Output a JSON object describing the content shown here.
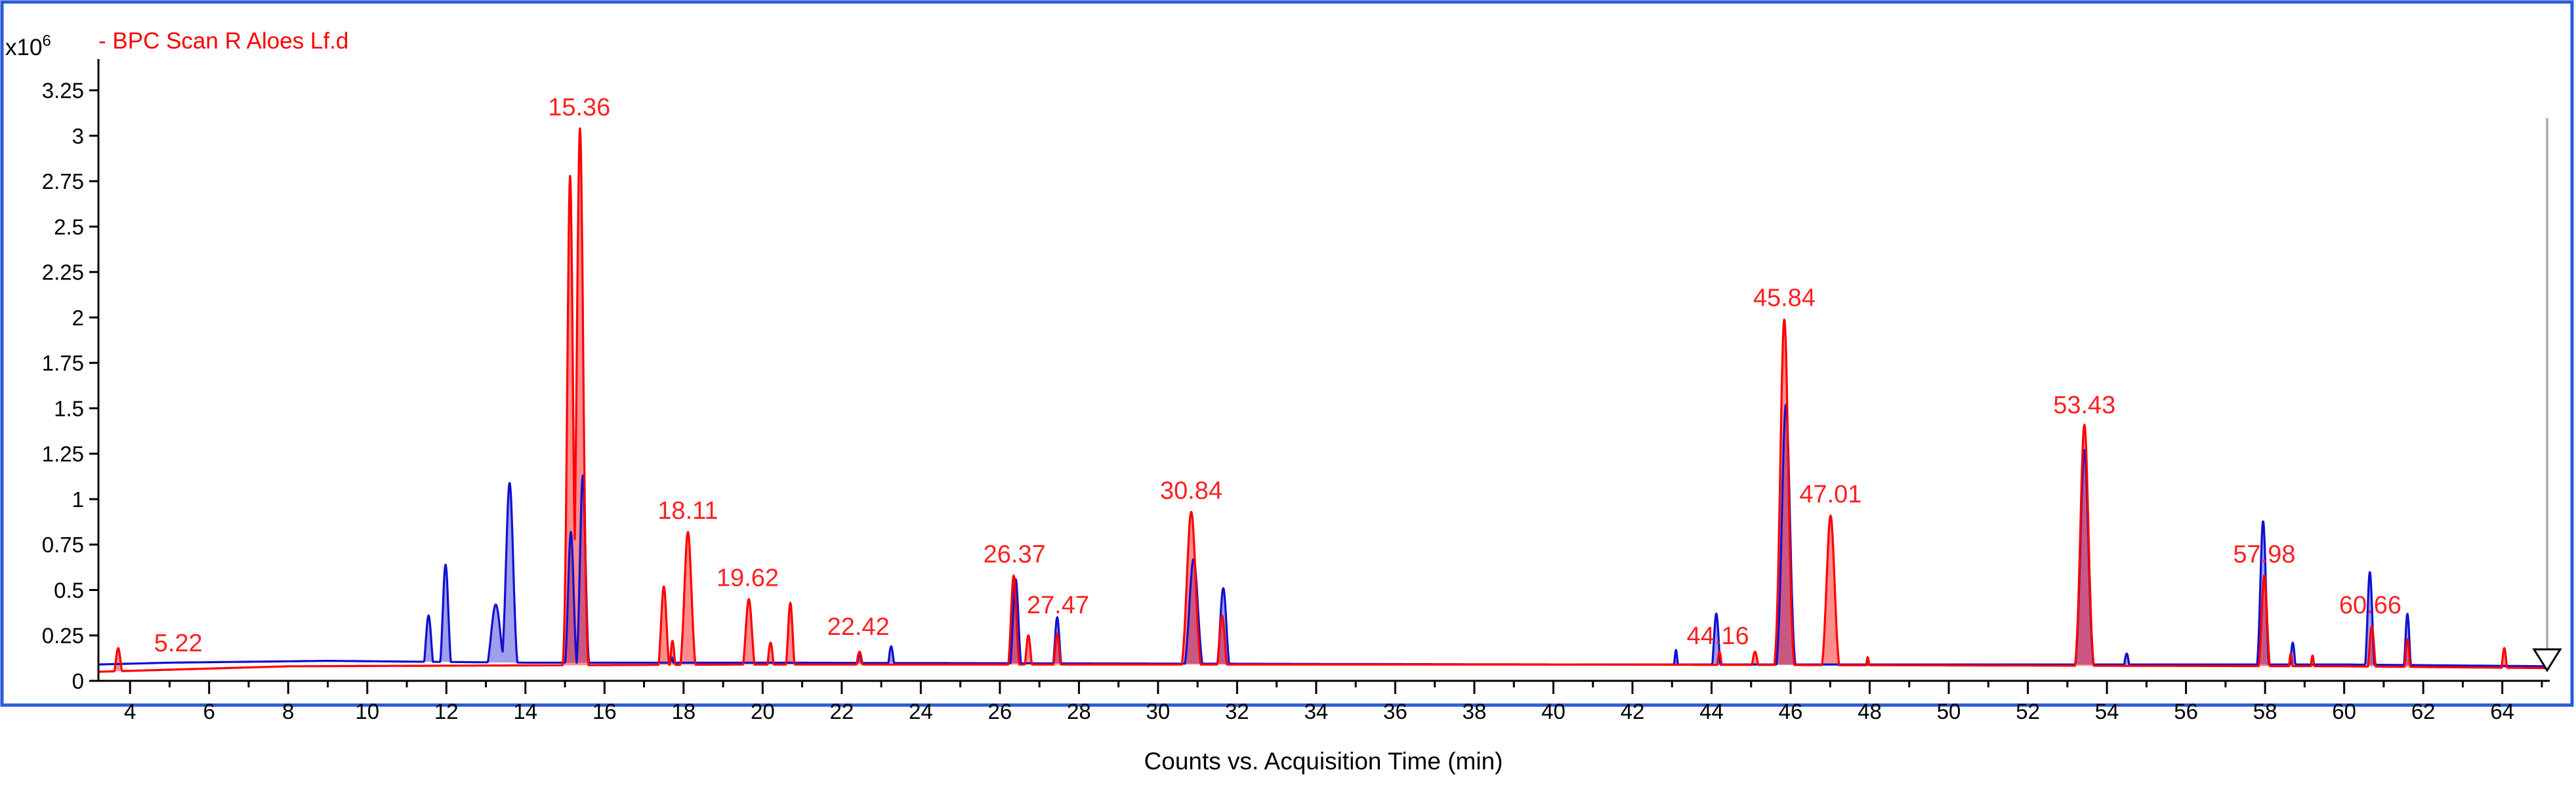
{
  "multiplier": {
    "base": "x10",
    "exp": "6"
  },
  "legend": {
    "label": "- BPC Scan R Aloes Lf.d",
    "color": "#ff0000"
  },
  "colors": {
    "frame": "#2a5bd7",
    "series_red": "#ff0000",
    "series_blue": "#1010d0",
    "fill_overlap": "#8a7aa8"
  },
  "chart_data": {
    "type": "area",
    "title": "",
    "xlabel": "Counts vs. Acquisition Time (min)",
    "ylabel": "",
    "xlim": [
      3.2,
      65.2
    ],
    "ylim": [
      0,
      3.35
    ],
    "x_ticks": [
      "4",
      "6",
      "8",
      "10",
      "12",
      "14",
      "16",
      "18",
      "20",
      "22",
      "24",
      "26",
      "28",
      "30",
      "32",
      "34",
      "36",
      "38",
      "40",
      "42",
      "44",
      "46",
      "48",
      "50",
      "52",
      "54",
      "56",
      "58",
      "60",
      "62",
      "64"
    ],
    "y_ticks": [
      "0",
      "0.25",
      "0.5",
      "0.75",
      "1",
      "1.25",
      "1.5",
      "1.75",
      "2",
      "2.25",
      "2.5",
      "2.75",
      "3",
      "3.25"
    ],
    "grid": false,
    "legend_position": "top-left",
    "peak_labels": [
      {
        "text": "5.22",
        "x": 5.22,
        "y": 0.09
      },
      {
        "text": "15.36",
        "x": 15.36,
        "y": 3.04
      },
      {
        "text": "18.11",
        "x": 18.11,
        "y": 0.82
      },
      {
        "text": "19.62",
        "x": 19.62,
        "y": 0.45
      },
      {
        "text": "22.42",
        "x": 22.42,
        "y": 0.18
      },
      {
        "text": "26.37",
        "x": 26.37,
        "y": 0.58
      },
      {
        "text": "27.47",
        "x": 27.47,
        "y": 0.3
      },
      {
        "text": "30.84",
        "x": 30.84,
        "y": 0.93
      },
      {
        "text": "44.16",
        "x": 44.16,
        "y": 0.13
      },
      {
        "text": "45.84",
        "x": 45.84,
        "y": 1.99
      },
      {
        "text": "47.01",
        "x": 47.01,
        "y": 0.91
      },
      {
        "text": "53.43",
        "x": 53.43,
        "y": 1.4
      },
      {
        "text": "57.98",
        "x": 57.98,
        "y": 0.58
      },
      {
        "text": "60.66",
        "x": 60.66,
        "y": 0.3
      }
    ],
    "series": [
      {
        "color": "#ff0000",
        "baseline": [
          [
            3.2,
            0.05
          ],
          [
            8,
            0.08
          ],
          [
            20,
            0.09
          ],
          [
            40,
            0.09
          ],
          [
            60,
            0.08
          ],
          [
            65.2,
            0.07
          ]
        ],
        "peaks": [
          [
            3.7,
            0.18,
            0.06
          ],
          [
            15.13,
            2.78,
            0.07
          ],
          [
            15.38,
            3.04,
            0.08
          ],
          [
            17.5,
            0.52,
            0.07
          ],
          [
            17.72,
            0.22,
            0.05
          ],
          [
            18.11,
            0.82,
            0.09
          ],
          [
            19.65,
            0.45,
            0.08
          ],
          [
            20.2,
            0.21,
            0.06
          ],
          [
            20.7,
            0.43,
            0.06
          ],
          [
            22.45,
            0.16,
            0.07
          ],
          [
            26.35,
            0.58,
            0.07
          ],
          [
            26.72,
            0.25,
            0.06
          ],
          [
            27.45,
            0.26,
            0.06
          ],
          [
            30.84,
            0.93,
            0.11
          ],
          [
            31.62,
            0.36,
            0.07
          ],
          [
            44.2,
            0.16,
            0.05
          ],
          [
            45.1,
            0.16,
            0.07
          ],
          [
            45.84,
            1.99,
            0.1
          ],
          [
            47.01,
            0.91,
            0.1
          ],
          [
            47.95,
            0.13,
            0.04
          ],
          [
            53.43,
            1.41,
            0.1
          ],
          [
            57.98,
            0.58,
            0.07
          ],
          [
            58.65,
            0.15,
            0.04
          ],
          [
            59.2,
            0.14,
            0.04
          ],
          [
            60.7,
            0.3,
            0.06
          ],
          [
            61.6,
            0.23,
            0.05
          ],
          [
            64.05,
            0.18,
            0.05
          ]
        ]
      },
      {
        "color": "#1010d0",
        "baseline": [
          [
            3.2,
            0.09
          ],
          [
            5,
            0.1
          ],
          [
            9,
            0.11
          ],
          [
            14,
            0.1
          ],
          [
            20,
            0.1
          ],
          [
            40,
            0.09
          ],
          [
            60,
            0.09
          ],
          [
            65.2,
            0.08
          ]
        ],
        "peaks": [
          [
            11.55,
            0.36,
            0.07
          ],
          [
            11.98,
            0.64,
            0.07
          ],
          [
            13.25,
            0.42,
            0.12
          ],
          [
            13.6,
            1.09,
            0.09
          ],
          [
            15.15,
            0.82,
            0.07
          ],
          [
            15.45,
            1.13,
            0.07
          ],
          [
            17.7,
            0.13,
            0.05
          ],
          [
            22.45,
            0.15,
            0.06
          ],
          [
            23.25,
            0.19,
            0.06
          ],
          [
            26.4,
            0.56,
            0.07
          ],
          [
            27.45,
            0.35,
            0.06
          ],
          [
            30.9,
            0.67,
            0.11
          ],
          [
            31.65,
            0.51,
            0.08
          ],
          [
            43.1,
            0.17,
            0.04
          ],
          [
            44.12,
            0.37,
            0.06
          ],
          [
            45.88,
            1.52,
            0.1
          ],
          [
            53.43,
            1.27,
            0.1
          ],
          [
            54.5,
            0.15,
            0.06
          ],
          [
            57.95,
            0.88,
            0.07
          ],
          [
            58.7,
            0.21,
            0.05
          ],
          [
            60.65,
            0.6,
            0.06
          ],
          [
            61.6,
            0.37,
            0.05
          ]
        ]
      }
    ]
  }
}
